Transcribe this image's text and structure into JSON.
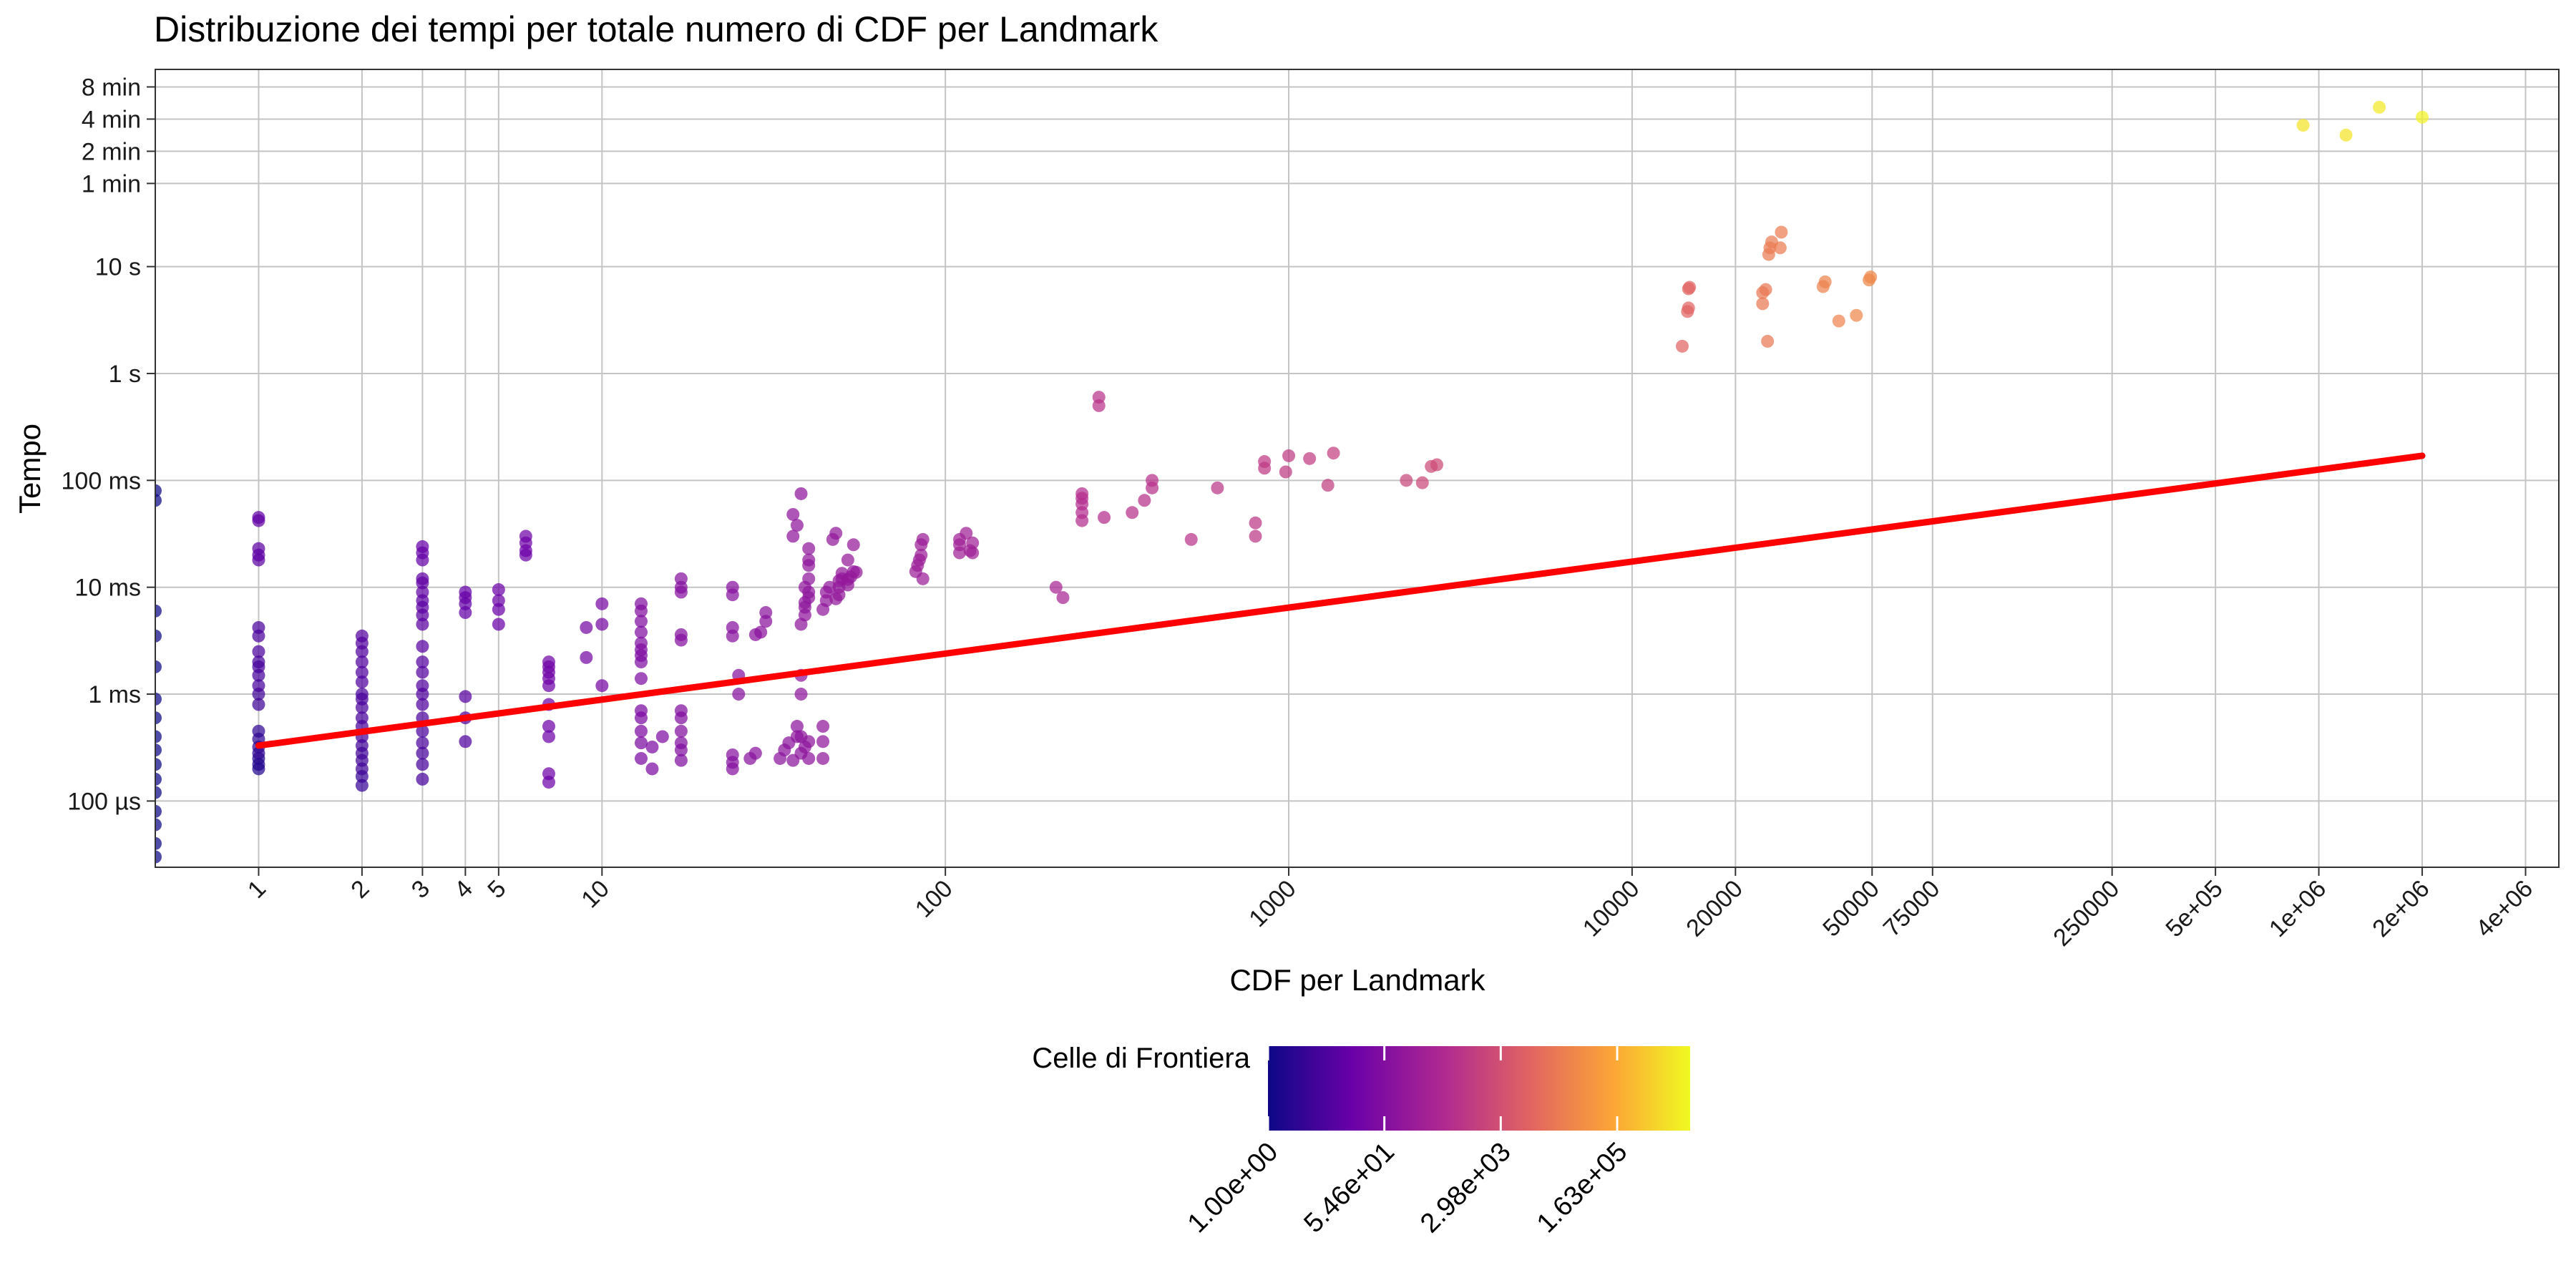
{
  "chart_data": {
    "type": "scatter",
    "title": "Distribuzione dei tempi per totale numero di CDF per Landmark",
    "xlabel": "CDF per Landmark",
    "ylabel": "Tempo",
    "x_scale": "log10",
    "y_scale": "log10",
    "y_unit": "seconds",
    "xlim": [
      0.5,
      5000000
    ],
    "ylim": [
      2.4e-05,
      700
    ],
    "grid": true,
    "x_ticks": [
      {
        "value": 1,
        "label": "1"
      },
      {
        "value": 2,
        "label": "2"
      },
      {
        "value": 3,
        "label": "3"
      },
      {
        "value": 4,
        "label": "4"
      },
      {
        "value": 5,
        "label": "5"
      },
      {
        "value": 10,
        "label": "10"
      },
      {
        "value": 100,
        "label": "100"
      },
      {
        "value": 1000,
        "label": "1000"
      },
      {
        "value": 10000,
        "label": "10000"
      },
      {
        "value": 20000,
        "label": "20000"
      },
      {
        "value": 50000,
        "label": "50000"
      },
      {
        "value": 75000,
        "label": "75000"
      },
      {
        "value": 250000,
        "label": "250000"
      },
      {
        "value": 500000,
        "label": "5e+05"
      },
      {
        "value": 1000000,
        "label": "1e+06"
      },
      {
        "value": 2000000,
        "label": "2e+06"
      },
      {
        "value": 4000000,
        "label": "4e+06"
      }
    ],
    "y_ticks": [
      {
        "value": 0.0001,
        "label": "100 µs"
      },
      {
        "value": 0.001,
        "label": "1 ms"
      },
      {
        "value": 0.01,
        "label": "10 ms"
      },
      {
        "value": 0.1,
        "label": "100 ms"
      },
      {
        "value": 1,
        "label": "1 s"
      },
      {
        "value": 10,
        "label": "10 s"
      },
      {
        "value": 60,
        "label": "1 min"
      },
      {
        "value": 120,
        "label": "2 min"
      },
      {
        "value": 240,
        "label": "4 min"
      },
      {
        "value": 480,
        "label": "8 min"
      }
    ],
    "colorbar": {
      "title": "Celle di Frontiera",
      "scale": "log10",
      "range": [
        1,
        2000000
      ],
      "palette": [
        "#0d0887",
        "#6a00a8",
        "#b12a90",
        "#e16462",
        "#fca636",
        "#f0f921"
      ],
      "ticks": [
        {
          "value": 1,
          "label": "1.00e+00"
        },
        {
          "value": 54.6,
          "label": "5.46e+01"
        },
        {
          "value": 2980,
          "label": "2.98e+03"
        },
        {
          "value": 163000,
          "label": "1.63e+05"
        }
      ]
    },
    "fit_line": {
      "color": "#ff0000",
      "points": [
        [
          1,
          0.00033
        ],
        [
          2000000,
          0.17
        ]
      ]
    },
    "points": [
      [
        0.5,
        3e-05,
        1
      ],
      [
        0.5,
        4e-05,
        1
      ],
      [
        0.5,
        6e-05,
        1
      ],
      [
        0.5,
        8e-05,
        1
      ],
      [
        0.5,
        0.00012,
        1
      ],
      [
        0.5,
        0.00016,
        1
      ],
      [
        0.5,
        0.00022,
        1
      ],
      [
        0.5,
        0.0003,
        1
      ],
      [
        0.5,
        0.0004,
        1
      ],
      [
        0.5,
        0.0006,
        1
      ],
      [
        0.5,
        0.0009,
        1
      ],
      [
        0.5,
        0.0018,
        1
      ],
      [
        0.5,
        0.0035,
        1
      ],
      [
        0.5,
        0.006,
        1
      ],
      [
        0.5,
        0.065,
        1
      ],
      [
        0.5,
        0.08,
        1
      ],
      [
        1,
        0.0002,
        2
      ],
      [
        1,
        0.00022,
        2
      ],
      [
        1,
        0.00025,
        2
      ],
      [
        1,
        0.00028,
        3
      ],
      [
        1,
        0.00032,
        3
      ],
      [
        1,
        0.00038,
        3
      ],
      [
        1,
        0.00045,
        3
      ],
      [
        1,
        0.0008,
        5
      ],
      [
        1,
        0.001,
        5
      ],
      [
        1,
        0.0012,
        6
      ],
      [
        1,
        0.0015,
        6
      ],
      [
        1,
        0.0018,
        6
      ],
      [
        1,
        0.002,
        6
      ],
      [
        1,
        0.0025,
        7
      ],
      [
        1,
        0.0035,
        7
      ],
      [
        1,
        0.0042,
        7
      ],
      [
        1,
        0.018,
        12
      ],
      [
        1,
        0.02,
        12
      ],
      [
        1,
        0.023,
        12
      ],
      [
        1,
        0.042,
        14
      ],
      [
        1,
        0.045,
        14
      ],
      [
        2,
        0.00014,
        4
      ],
      [
        2,
        0.00017,
        4
      ],
      [
        2,
        0.0002,
        5
      ],
      [
        2,
        0.00024,
        5
      ],
      [
        2,
        0.00028,
        5
      ],
      [
        2,
        0.00033,
        5
      ],
      [
        2,
        0.0004,
        6
      ],
      [
        2,
        0.0005,
        6
      ],
      [
        2,
        0.0006,
        6
      ],
      [
        2,
        0.00075,
        7
      ],
      [
        2,
        0.0009,
        7
      ],
      [
        2,
        0.001,
        7
      ],
      [
        2,
        0.0013,
        8
      ],
      [
        2,
        0.0016,
        8
      ],
      [
        2,
        0.002,
        8
      ],
      [
        2,
        0.0025,
        8
      ],
      [
        2,
        0.003,
        9
      ],
      [
        2,
        0.0035,
        9
      ],
      [
        3,
        0.00016,
        6
      ],
      [
        3,
        0.00022,
        6
      ],
      [
        3,
        0.00028,
        6
      ],
      [
        3,
        0.00035,
        7
      ],
      [
        3,
        0.00045,
        7
      ],
      [
        3,
        0.0006,
        7
      ],
      [
        3,
        0.0008,
        8
      ],
      [
        3,
        0.001,
        8
      ],
      [
        3,
        0.0012,
        8
      ],
      [
        3,
        0.0016,
        9
      ],
      [
        3,
        0.002,
        9
      ],
      [
        3,
        0.0028,
        10
      ],
      [
        3,
        0.0045,
        11
      ],
      [
        3,
        0.0055,
        11
      ],
      [
        3,
        0.0065,
        12
      ],
      [
        3,
        0.0075,
        12
      ],
      [
        3,
        0.009,
        13
      ],
      [
        3,
        0.011,
        13
      ],
      [
        3,
        0.012,
        14
      ],
      [
        3,
        0.018,
        15
      ],
      [
        3,
        0.021,
        15
      ],
      [
        3,
        0.024,
        16
      ],
      [
        4,
        0.00036,
        8
      ],
      [
        4,
        0.0006,
        9
      ],
      [
        4,
        0.00095,
        10
      ],
      [
        4,
        0.0058,
        15
      ],
      [
        4,
        0.007,
        15
      ],
      [
        4,
        0.008,
        16
      ],
      [
        4,
        0.009,
        16
      ],
      [
        5,
        0.0045,
        18
      ],
      [
        5,
        0.0062,
        18
      ],
      [
        5,
        0.0075,
        19
      ],
      [
        5,
        0.0095,
        20
      ],
      [
        6,
        0.02,
        22
      ],
      [
        6,
        0.022,
        22
      ],
      [
        6,
        0.026,
        23
      ],
      [
        6,
        0.03,
        23
      ],
      [
        7,
        0.00015,
        20
      ],
      [
        7,
        0.00018,
        20
      ],
      [
        7,
        0.0004,
        21
      ],
      [
        7,
        0.0005,
        21
      ],
      [
        7,
        0.0008,
        22
      ],
      [
        7,
        0.0012,
        22
      ],
      [
        7,
        0.0014,
        23
      ],
      [
        7,
        0.0016,
        23
      ],
      [
        7,
        0.0018,
        24
      ],
      [
        7,
        0.002,
        24
      ],
      [
        9,
        0.0022,
        30
      ],
      [
        9,
        0.0042,
        30
      ],
      [
        10,
        0.0012,
        32
      ],
      [
        10,
        0.0045,
        34
      ],
      [
        10,
        0.007,
        34
      ],
      [
        13,
        0.00025,
        40
      ],
      [
        13,
        0.00035,
        40
      ],
      [
        13,
        0.00045,
        40
      ],
      [
        13,
        0.0006,
        40
      ],
      [
        13,
        0.0007,
        40
      ],
      [
        13,
        0.0014,
        45
      ],
      [
        13,
        0.002,
        45
      ],
      [
        13,
        0.0023,
        45
      ],
      [
        13,
        0.0026,
        45
      ],
      [
        13,
        0.003,
        48
      ],
      [
        13,
        0.0038,
        48
      ],
      [
        13,
        0.0048,
        50
      ],
      [
        13,
        0.006,
        52
      ],
      [
        13,
        0.007,
        52
      ],
      [
        14,
        0.0002,
        42
      ],
      [
        14,
        0.00032,
        42
      ],
      [
        15,
        0.0004,
        44
      ],
      [
        17,
        0.00024,
        48
      ],
      [
        17,
        0.0003,
        50
      ],
      [
        17,
        0.00035,
        50
      ],
      [
        17,
        0.00045,
        52
      ],
      [
        17,
        0.0006,
        52
      ],
      [
        17,
        0.0007,
        52
      ],
      [
        17,
        0.0032,
        58
      ],
      [
        17,
        0.0036,
        58
      ],
      [
        17,
        0.009,
        60
      ],
      [
        17,
        0.01,
        60
      ],
      [
        17,
        0.012,
        62
      ],
      [
        24,
        0.0002,
        60
      ],
      [
        24,
        0.00023,
        60
      ],
      [
        24,
        0.00027,
        60
      ],
      [
        25,
        0.001,
        65
      ],
      [
        25,
        0.0015,
        65
      ],
      [
        24,
        0.0035,
        66
      ],
      [
        24,
        0.0042,
        66
      ],
      [
        24,
        0.0085,
        68
      ],
      [
        24,
        0.01,
        68
      ],
      [
        27,
        0.00025,
        70
      ],
      [
        28,
        0.00028,
        72
      ],
      [
        28,
        0.0036,
        72
      ],
      [
        29,
        0.0038,
        74
      ],
      [
        30,
        0.0048,
        74
      ],
      [
        30,
        0.0058,
        75
      ],
      [
        33,
        0.00025,
        80
      ],
      [
        34,
        0.0003,
        80
      ],
      [
        35,
        0.00035,
        82
      ],
      [
        36,
        0.00024,
        82
      ],
      [
        37,
        0.0004,
        84
      ],
      [
        37,
        0.0005,
        84
      ],
      [
        38,
        0.00028,
        85
      ],
      [
        38,
        0.0004,
        85
      ],
      [
        39,
        0.00032,
        86
      ],
      [
        40,
        0.00025,
        86
      ],
      [
        40,
        0.00036,
        88
      ],
      [
        36,
        0.03,
        90
      ],
      [
        37,
        0.038,
        90
      ],
      [
        36,
        0.048,
        92
      ],
      [
        38,
        0.075,
        92
      ],
      [
        38,
        0.001,
        90
      ],
      [
        38,
        0.0015,
        90
      ],
      [
        39,
        0.0055,
        92
      ],
      [
        39,
        0.0065,
        92
      ],
      [
        39,
        0.0072,
        94
      ],
      [
        40,
        0.008,
        94
      ],
      [
        40,
        0.009,
        94
      ],
      [
        39,
        0.01,
        95
      ],
      [
        40,
        0.012,
        95
      ],
      [
        40,
        0.016,
        96
      ],
      [
        40,
        0.018,
        96
      ],
      [
        40,
        0.023,
        98
      ],
      [
        38,
        0.0045,
        92
      ],
      [
        44,
        0.00025,
        100
      ],
      [
        44,
        0.00036,
        100
      ],
      [
        44,
        0.0005,
        100
      ],
      [
        44,
        0.0062,
        102
      ],
      [
        45,
        0.0075,
        102
      ],
      [
        45,
        0.009,
        104
      ],
      [
        46,
        0.01,
        104
      ],
      [
        47,
        0.028,
        110
      ],
      [
        48,
        0.032,
        110
      ],
      [
        48,
        0.0078,
        110
      ],
      [
        49,
        0.0085,
        112
      ],
      [
        49,
        0.01,
        112
      ],
      [
        49,
        0.0115,
        114
      ],
      [
        50,
        0.0135,
        114
      ],
      [
        50,
        0.012,
        114
      ],
      [
        52,
        0.0105,
        115
      ],
      [
        52,
        0.0118,
        116
      ],
      [
        53,
        0.0125,
        116
      ],
      [
        54,
        0.014,
        116
      ],
      [
        55,
        0.0138,
        118
      ],
      [
        54,
        0.025,
        118
      ],
      [
        52,
        0.018,
        118
      ],
      [
        82,
        0.014,
        160
      ],
      [
        83,
        0.016,
        160
      ],
      [
        84,
        0.018,
        160
      ],
      [
        85,
        0.02,
        165
      ],
      [
        85,
        0.025,
        165
      ],
      [
        86,
        0.028,
        165
      ],
      [
        86,
        0.012,
        162
      ],
      [
        110,
        0.021,
        200
      ],
      [
        110,
        0.025,
        200
      ],
      [
        110,
        0.028,
        205
      ],
      [
        115,
        0.032,
        205
      ],
      [
        118,
        0.022,
        205
      ],
      [
        120,
        0.021,
        210
      ],
      [
        120,
        0.026,
        210
      ],
      [
        210,
        0.01,
        300
      ],
      [
        220,
        0.008,
        300
      ],
      [
        250,
        0.042,
        500
      ],
      [
        250,
        0.05,
        500
      ],
      [
        250,
        0.06,
        500
      ],
      [
        250,
        0.068,
        500
      ],
      [
        250,
        0.075,
        500
      ],
      [
        280,
        0.5,
        700
      ],
      [
        280,
        0.6,
        700
      ],
      [
        290,
        0.045,
        520
      ],
      [
        350,
        0.05,
        600
      ],
      [
        380,
        0.065,
        600
      ],
      [
        400,
        0.085,
        620
      ],
      [
        400,
        0.1,
        620
      ],
      [
        520,
        0.028,
        700
      ],
      [
        620,
        0.085,
        800
      ],
      [
        800,
        0.03,
        900
      ],
      [
        800,
        0.04,
        900
      ],
      [
        850,
        0.13,
        950
      ],
      [
        850,
        0.15,
        950
      ],
      [
        980,
        0.12,
        1000
      ],
      [
        1000,
        0.17,
        1000
      ],
      [
        1150,
        0.16,
        1100
      ],
      [
        1300,
        0.09,
        1200
      ],
      [
        1350,
        0.18,
        1300
      ],
      [
        2200,
        0.1,
        1800
      ],
      [
        2450,
        0.095,
        2000
      ],
      [
        2600,
        0.135,
        2200
      ],
      [
        2700,
        0.14,
        2300
      ],
      [
        14000,
        1.8,
        8000
      ],
      [
        14500,
        3.8,
        8000
      ],
      [
        14600,
        4.1,
        8000
      ],
      [
        14600,
        6.2,
        8000
      ],
      [
        14700,
        6.4,
        8000
      ],
      [
        24000,
        4.5,
        20000
      ],
      [
        24000,
        5.7,
        20000
      ],
      [
        24500,
        6.1,
        20000
      ],
      [
        24800,
        2,
        20000
      ],
      [
        25000,
        13,
        22000
      ],
      [
        25200,
        15,
        22000
      ],
      [
        25500,
        17,
        22000
      ],
      [
        27000,
        15,
        24000
      ],
      [
        27200,
        21,
        24000
      ],
      [
        36000,
        6.5,
        30000
      ],
      [
        36500,
        7.2,
        30000
      ],
      [
        40000,
        3.1,
        33000
      ],
      [
        45000,
        3.5,
        36000
      ],
      [
        49000,
        7.5,
        38000
      ],
      [
        49500,
        8,
        38000
      ],
      [
        900000,
        210,
        1000000
      ],
      [
        1200000,
        170,
        1000000
      ],
      [
        1500000,
        310,
        1200000
      ],
      [
        2000000,
        250,
        1600000
      ]
    ]
  }
}
